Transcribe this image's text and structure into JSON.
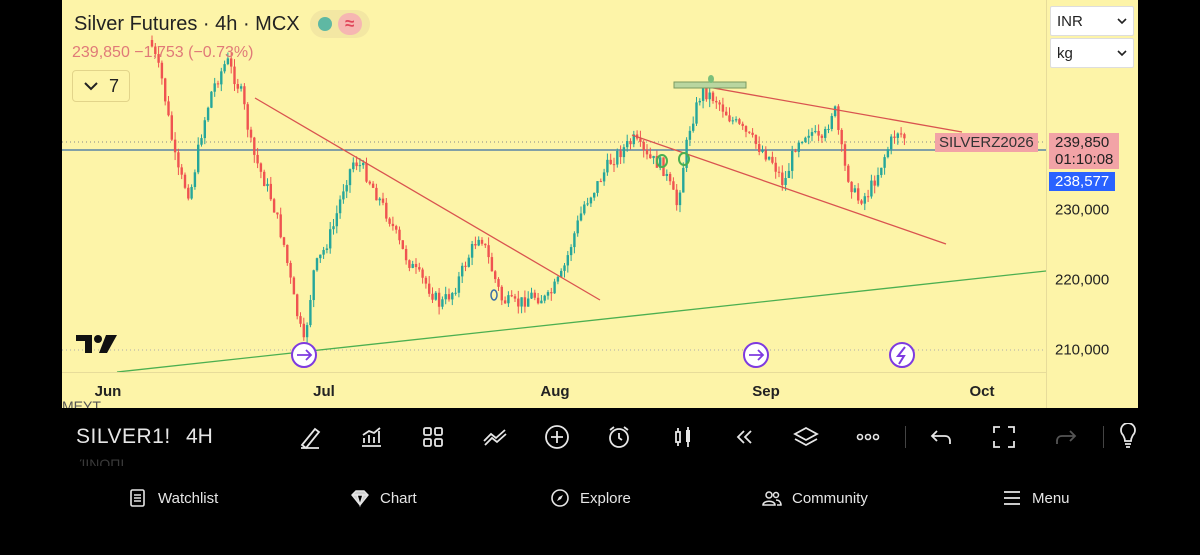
{
  "header": {
    "title": "Silver Futures · 4h · MCX",
    "quote": "239,850 −1,753 (−0.73%)",
    "collapse_count": "7",
    "status_wave": "≈"
  },
  "unit_selects": {
    "currency": "INR",
    "unit": "kg"
  },
  "price_axis": {
    "labels": [
      "230,000",
      "220,000",
      "210,000"
    ],
    "last_price": "239,850",
    "countdown": "01:10:08",
    "line_price": "238,577"
  },
  "time_axis": {
    "labels": [
      "Jun",
      "Jul",
      "Aug",
      "Sep",
      "Oct"
    ]
  },
  "chart": {
    "ticker_label": "SILVERZ2026",
    "colors": {
      "background": "#fdf4a8",
      "up": "#26a69a",
      "down": "#ef5350",
      "red_line": "#d9534f",
      "green_line": "#4caf50",
      "blue_line": "#3a6ea5"
    }
  },
  "ghost_text": {
    "top": "MEYT.",
    "bottom": "ΊΙΝΟΠΙ"
  },
  "toolbar": {
    "symbol": "SILVER1!",
    "timeframe": "4H",
    "tools": [
      "draw-icon",
      "indicators-icon",
      "layout-icon",
      "chart-type-icon",
      "add-icon",
      "alert-icon",
      "candles-icon",
      "replay-icon",
      "layers-icon",
      "more-icon",
      "undo-icon",
      "fullscreen-icon",
      "redo-icon",
      "bulb-icon"
    ]
  },
  "bottom_nav": {
    "items": [
      {
        "label": "Watchlist",
        "icon": "watchlist-icon"
      },
      {
        "label": "Chart",
        "icon": "chart-icon"
      },
      {
        "label": "Explore",
        "icon": "explore-icon"
      },
      {
        "label": "Community",
        "icon": "community-icon"
      },
      {
        "label": "Menu",
        "icon": "menu-icon"
      }
    ]
  }
}
